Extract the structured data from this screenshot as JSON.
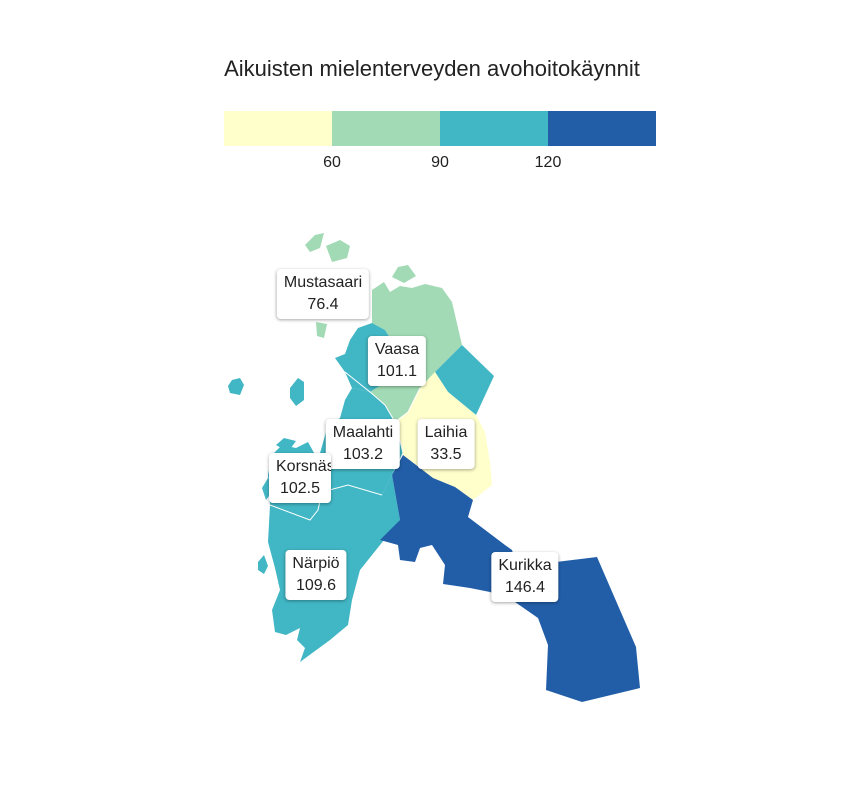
{
  "title": "Aikuisten mielenterveyden avohoitokäynnit",
  "legend": {
    "colors": [
      "#ffffcc",
      "#a1dab4",
      "#41b6c4",
      "#225ea8"
    ],
    "breaks": [
      "60",
      "90",
      "120"
    ]
  },
  "regions": [
    {
      "name": "Mustasaari",
      "value": "76.4",
      "color": "#a1dab4"
    },
    {
      "name": "Vaasa",
      "value": "101.1",
      "color": "#41b6c4"
    },
    {
      "name": "Maalahti",
      "value": "103.2",
      "color": "#41b6c4"
    },
    {
      "name": "Laihia",
      "value": "33.5",
      "color": "#ffffcc"
    },
    {
      "name": "Korsnäs",
      "value": "102.5",
      "color": "#41b6c4"
    },
    {
      "name": "Närpiö",
      "value": "109.6",
      "color": "#41b6c4"
    },
    {
      "name": "Kurikka",
      "value": "146.4",
      "color": "#225ea8"
    }
  ]
}
